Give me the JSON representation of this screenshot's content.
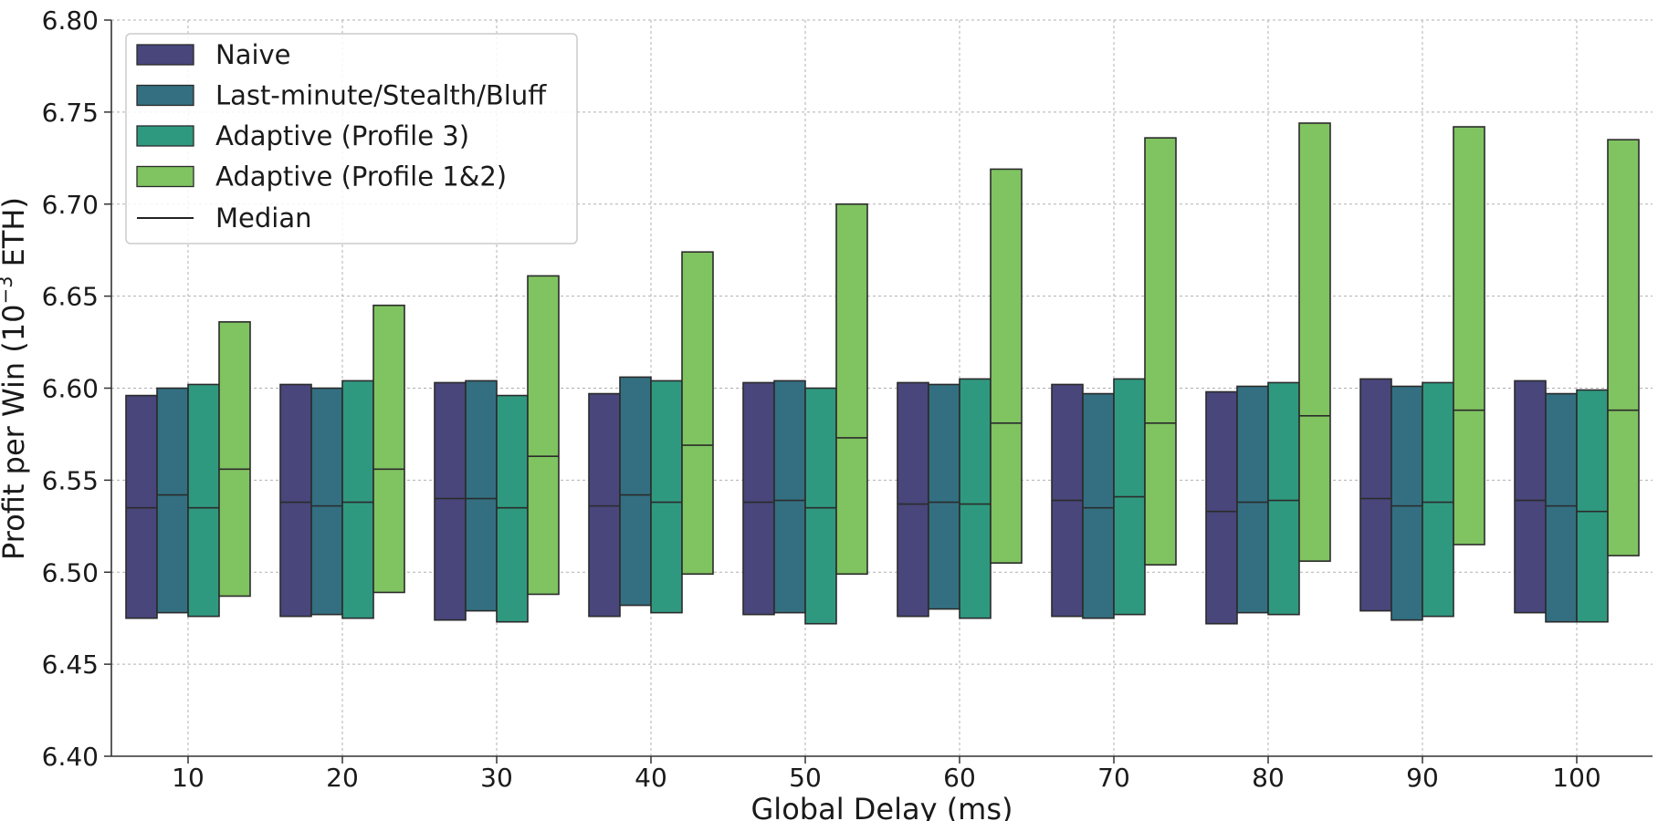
{
  "chart_data": {
    "type": "bar",
    "subtype": "floating-range-with-median",
    "title": "",
    "xlabel": "Global Delay (ms)",
    "ylabel_main": "Profit per Win (10",
    "ylabel_sup": "−3",
    "ylabel_tail": " ETH)",
    "ylim": [
      6.4,
      6.8
    ],
    "yticks": [
      "6.40",
      "6.45",
      "6.50",
      "6.55",
      "6.60",
      "6.65",
      "6.70",
      "6.75",
      "6.80"
    ],
    "categories": [
      "10",
      "20",
      "30",
      "40",
      "50",
      "60",
      "70",
      "80",
      "90",
      "100"
    ],
    "grid": true,
    "legend_position": "top-left",
    "median_legend_label": "Median",
    "series": [
      {
        "name": "Naive",
        "color": "#48467b",
        "low": [
          6.475,
          6.476,
          6.474,
          6.476,
          6.477,
          6.476,
          6.476,
          6.472,
          6.479,
          6.478
        ],
        "high": [
          6.596,
          6.602,
          6.603,
          6.597,
          6.603,
          6.603,
          6.602,
          6.598,
          6.605,
          6.604
        ],
        "median": [
          6.535,
          6.538,
          6.54,
          6.536,
          6.538,
          6.537,
          6.539,
          6.533,
          6.54,
          6.539
        ]
      },
      {
        "name": "Last-minute/Stealth/Bluff",
        "color": "#336f81",
        "low": [
          6.478,
          6.477,
          6.479,
          6.482,
          6.478,
          6.48,
          6.475,
          6.478,
          6.474,
          6.473
        ],
        "high": [
          6.6,
          6.6,
          6.604,
          6.606,
          6.604,
          6.602,
          6.597,
          6.601,
          6.601,
          6.597
        ],
        "median": [
          6.542,
          6.536,
          6.54,
          6.542,
          6.539,
          6.538,
          6.535,
          6.538,
          6.536,
          6.536
        ]
      },
      {
        "name": "Adaptive (Profile 3)",
        "color": "#2f9980",
        "low": [
          6.476,
          6.475,
          6.473,
          6.478,
          6.472,
          6.475,
          6.477,
          6.477,
          6.476,
          6.473
        ],
        "high": [
          6.602,
          6.604,
          6.596,
          6.604,
          6.6,
          6.605,
          6.605,
          6.603,
          6.603,
          6.599
        ],
        "median": [
          6.535,
          6.538,
          6.535,
          6.538,
          6.535,
          6.537,
          6.541,
          6.539,
          6.538,
          6.533
        ]
      },
      {
        "name": "Adaptive (Profile 1&2)",
        "color": "#80c361",
        "low": [
          6.487,
          6.489,
          6.488,
          6.499,
          6.499,
          6.505,
          6.504,
          6.506,
          6.515,
          6.509
        ],
        "high": [
          6.636,
          6.645,
          6.661,
          6.674,
          6.7,
          6.719,
          6.736,
          6.744,
          6.742,
          6.735
        ],
        "median": [
          6.556,
          6.556,
          6.563,
          6.569,
          6.573,
          6.581,
          6.581,
          6.585,
          6.588,
          6.588
        ]
      }
    ]
  }
}
